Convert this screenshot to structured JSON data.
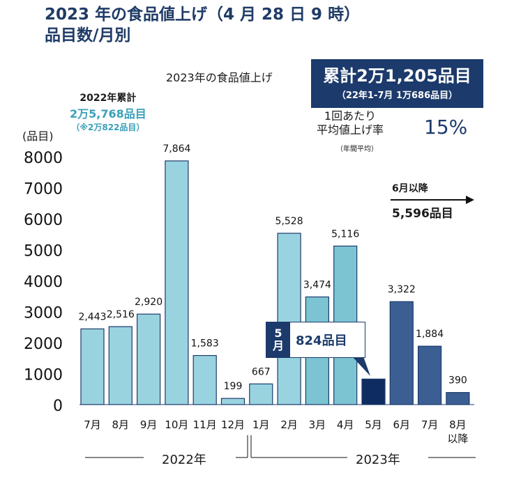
{
  "title": {
    "line1": "2023 年の食品値上げ（4 月 28 日 9 時）",
    "line2": "品目数/月別"
  },
  "summary_2023": {
    "label": "2023年の食品値上げ",
    "total": "累計2万1,205品目",
    "total_note": "（22年1-7月 1万686品目）",
    "rate_label_1": "1回あたり",
    "rate_label_2": "平均値上げ率",
    "rate_note": "（年間平均）",
    "rate_value": "15%"
  },
  "summary_2022": {
    "label": "2022年累計",
    "total": "2万5,768品目",
    "sub": "（※2万822品目）"
  },
  "june_onward": {
    "label": "6月以降",
    "total": "5,596品目"
  },
  "may_callout": {
    "tag": "5\n月",
    "value": "824品目"
  },
  "year_labels": {
    "y2022": "2022年",
    "y2023": "2023年"
  },
  "colors": {
    "light_bar": "#9ad3e0",
    "mid_bar": "#7cc4d2",
    "highlight_bar": "#0f2c62",
    "dark_bar": "#3b5f93",
    "accent": "#1c3a6b"
  },
  "chart_data": {
    "type": "bar",
    "ylabel": "(品目)",
    "ylim": [
      0,
      8000
    ],
    "yticks": [
      0,
      1000,
      2000,
      3000,
      4000,
      5000,
      6000,
      7000,
      8000
    ],
    "categories": [
      "7月",
      "8月",
      "9月",
      "10月",
      "11月",
      "12月",
      "1月",
      "2月",
      "3月",
      "4月",
      "5月",
      "6月",
      "7月",
      "8月\n以降"
    ],
    "values": [
      2443,
      2516,
      2920,
      7864,
      1583,
      199,
      667,
      5528,
      3474,
      5116,
      824,
      3322,
      1884,
      390
    ],
    "labels": [
      "2,443",
      "2,516",
      "2,920",
      "7,864",
      "1,583",
      "199",
      "667",
      "5,528",
      "3,474",
      "5,116",
      "",
      "3,322",
      "1,884",
      "390"
    ],
    "bar_colors": [
      "light",
      "light",
      "light",
      "light",
      "light",
      "light",
      "light",
      "light",
      "mid",
      "mid",
      "highlight",
      "dark",
      "dark",
      "dark"
    ]
  }
}
